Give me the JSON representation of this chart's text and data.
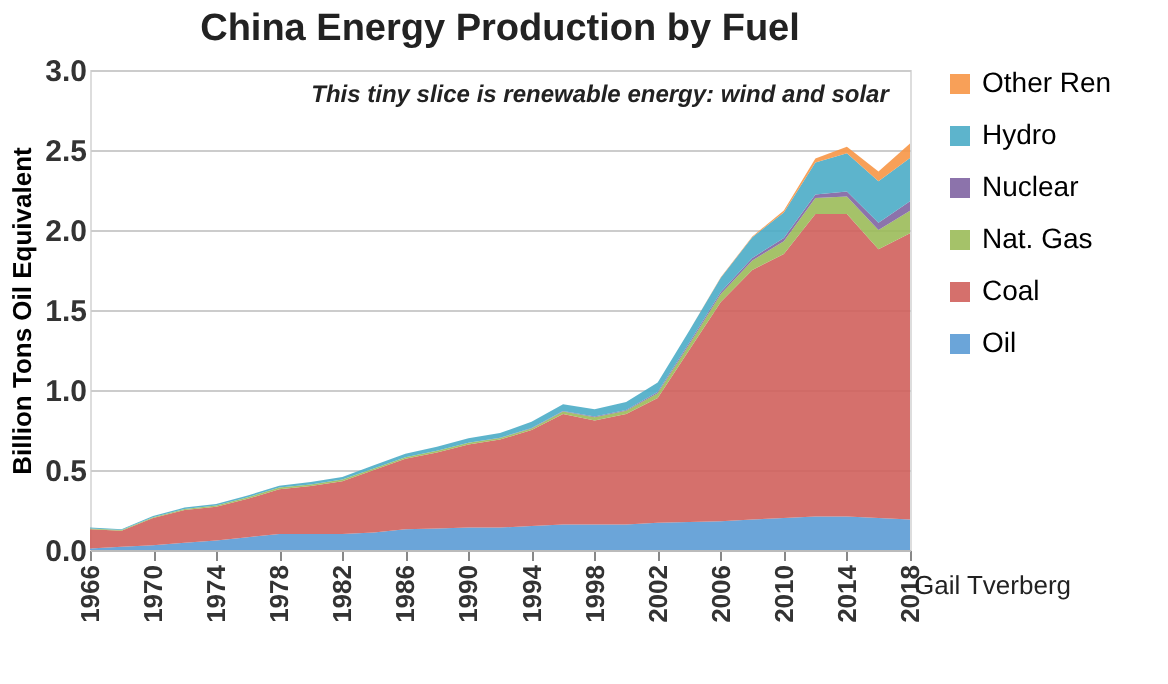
{
  "chart_data": {
    "type": "area",
    "title": "China Energy Production by Fuel",
    "ylabel": "Billion Tons Oil Equivalent",
    "stacked": true,
    "grid": "y",
    "legend": "right",
    "x": [
      1966,
      1968,
      1970,
      1972,
      1974,
      1976,
      1978,
      1980,
      1982,
      1984,
      1986,
      1988,
      1990,
      1992,
      1994,
      1996,
      1998,
      2000,
      2002,
      2004,
      2006,
      2008,
      2010,
      2012,
      2014,
      2016,
      2018
    ],
    "xlim": [
      1966,
      2018
    ],
    "xticks": [
      1966,
      1970,
      1974,
      1978,
      1982,
      1986,
      1990,
      1994,
      1998,
      2002,
      2006,
      2010,
      2014,
      2018
    ],
    "ylim": [
      0,
      3
    ],
    "yticks": [
      {
        "value": 0,
        "label": "0.0"
      },
      {
        "value": 0.5,
        "label": "0.5"
      },
      {
        "value": 1,
        "label": "1.0"
      },
      {
        "value": 1.5,
        "label": "1.5"
      },
      {
        "value": 2,
        "label": "2.0"
      },
      {
        "value": 2.5,
        "label": "2.5"
      },
      {
        "value": 3,
        "label": "3.0"
      }
    ],
    "series": [
      {
        "name": "Oil",
        "color": "#5b9bd5",
        "values": [
          0.01,
          0.02,
          0.03,
          0.045,
          0.06,
          0.08,
          0.1,
          0.1,
          0.1,
          0.11,
          0.13,
          0.135,
          0.14,
          0.14,
          0.15,
          0.16,
          0.16,
          0.16,
          0.17,
          0.175,
          0.18,
          0.19,
          0.2,
          0.21,
          0.21,
          0.2,
          0.19
        ]
      },
      {
        "name": "Coal",
        "color": "#d0605c",
        "values": [
          0.12,
          0.1,
          0.17,
          0.205,
          0.21,
          0.24,
          0.28,
          0.3,
          0.33,
          0.39,
          0.44,
          0.475,
          0.52,
          0.55,
          0.6,
          0.69,
          0.65,
          0.69,
          0.78,
          1.075,
          1.37,
          1.56,
          1.65,
          1.89,
          1.89,
          1.68,
          1.79
        ]
      },
      {
        "name": "Nat. Gas",
        "color": "#9bbb59",
        "values": [
          0.005,
          0.005,
          0.005,
          0.007,
          0.008,
          0.01,
          0.01,
          0.01,
          0.01,
          0.01,
          0.01,
          0.01,
          0.01,
          0.01,
          0.01,
          0.015,
          0.02,
          0.02,
          0.03,
          0.035,
          0.05,
          0.06,
          0.08,
          0.1,
          0.11,
          0.12,
          0.14
        ]
      },
      {
        "name": "Nuclear",
        "color": "#8064a2",
        "values": [
          0,
          0,
          0,
          0,
          0,
          0,
          0,
          0,
          0,
          0,
          0,
          0,
          0,
          0.001,
          0.003,
          0.004,
          0.004,
          0.005,
          0.007,
          0.01,
          0.012,
          0.015,
          0.02,
          0.022,
          0.03,
          0.045,
          0.06
        ]
      },
      {
        "name": "Hydro",
        "color": "#4bacc6",
        "values": [
          0.005,
          0.005,
          0.007,
          0.008,
          0.01,
          0.01,
          0.012,
          0.015,
          0.017,
          0.02,
          0.022,
          0.025,
          0.028,
          0.03,
          0.038,
          0.042,
          0.045,
          0.05,
          0.06,
          0.075,
          0.09,
          0.13,
          0.16,
          0.2,
          0.24,
          0.26,
          0.27
        ]
      },
      {
        "name": "Other Ren",
        "color": "#f79646",
        "values": [
          0,
          0,
          0,
          0,
          0,
          0,
          0,
          0,
          0,
          0,
          0,
          0,
          0,
          0,
          0,
          0,
          0,
          0,
          0,
          0,
          0.002,
          0.005,
          0.012,
          0.025,
          0.04,
          0.06,
          0.09
        ]
      }
    ],
    "annotations": [
      "This tiny slice is renewable energy: wind and solar",
      "Gail Tverberg"
    ]
  }
}
